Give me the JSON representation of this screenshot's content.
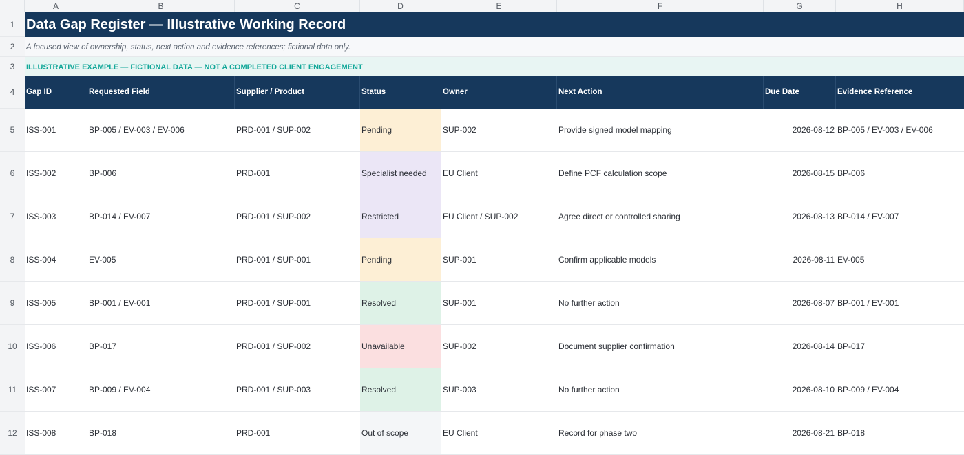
{
  "columns": [
    "A",
    "B",
    "C",
    "D",
    "E",
    "F",
    "G",
    "H"
  ],
  "row_numbers": [
    "1",
    "2",
    "3",
    "4",
    "5",
    "6",
    "7",
    "8",
    "9",
    "10",
    "11",
    "12"
  ],
  "title": "Data Gap Register — Illustrative Working Record",
  "subtitle": "A focused view of ownership, status, next action and evidence references; fictional data only.",
  "banner": "ILLUSTRATIVE EXAMPLE — FICTIONAL DATA — NOT A COMPLETED CLIENT ENGAGEMENT",
  "headers": [
    "Gap ID",
    "Requested Field",
    "Supplier / Product",
    "Status",
    "Owner",
    "Next Action",
    "Due Date",
    "Evidence Reference"
  ],
  "status_colors": {
    "Pending": "#fdefd5",
    "Specialist needed": "#ebe6f6",
    "Restricted": "#ebe6f6",
    "Resolved": "#def2e7",
    "Unavailable": "#fbdfe0",
    "Out of scope": "#f4f6f8"
  },
  "rows": [
    {
      "id": "ISS-001",
      "field": "BP-005 / EV-003 / EV-006",
      "supplier": "PRD-001 / SUP-002",
      "status": "Pending",
      "owner": "SUP-002",
      "action": "Provide signed model mapping",
      "due": "2026-08-12",
      "evidence": "BP-005 / EV-003 / EV-006"
    },
    {
      "id": "ISS-002",
      "field": "BP-006",
      "supplier": "PRD-001",
      "status": "Specialist needed",
      "owner": "EU Client",
      "action": "Define PCF calculation scope",
      "due": "2026-08-15",
      "evidence": "BP-006"
    },
    {
      "id": "ISS-003",
      "field": "BP-014 / EV-007",
      "supplier": "PRD-001 / SUP-002",
      "status": "Restricted",
      "owner": "EU Client / SUP-002",
      "action": "Agree direct or controlled sharing",
      "due": "2026-08-13",
      "evidence": "BP-014 / EV-007"
    },
    {
      "id": "ISS-004",
      "field": "EV-005",
      "supplier": "PRD-001 / SUP-001",
      "status": "Pending",
      "owner": "SUP-001",
      "action": "Confirm applicable models",
      "due": "2026-08-11",
      "evidence": "EV-005"
    },
    {
      "id": "ISS-005",
      "field": "BP-001 / EV-001",
      "supplier": "PRD-001 / SUP-001",
      "status": "Resolved",
      "owner": "SUP-001",
      "action": "No further action",
      "due": "2026-08-07",
      "evidence": "BP-001 / EV-001"
    },
    {
      "id": "ISS-006",
      "field": "BP-017",
      "supplier": "PRD-001 / SUP-002",
      "status": "Unavailable",
      "owner": "SUP-002",
      "action": "Document supplier confirmation",
      "due": "2026-08-14",
      "evidence": "BP-017"
    },
    {
      "id": "ISS-007",
      "field": "BP-009 / EV-004",
      "supplier": "PRD-001 / SUP-003",
      "status": "Resolved",
      "owner": "SUP-003",
      "action": "No further action",
      "due": "2026-08-10",
      "evidence": "BP-009 / EV-004"
    },
    {
      "id": "ISS-008",
      "field": "BP-018",
      "supplier": "PRD-001",
      "status": "Out of scope",
      "owner": "EU Client",
      "action": "Record for phase two",
      "due": "2026-08-21",
      "evidence": "BP-018"
    }
  ]
}
